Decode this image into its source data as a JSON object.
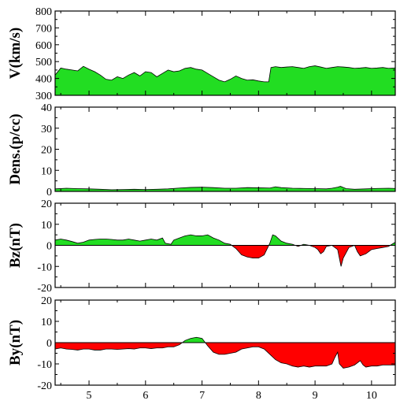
{
  "chart_data": [
    {
      "type": "area",
      "ylabel": "V(km/s)",
      "ylim": [
        300,
        800
      ],
      "yticks": [
        "300",
        "400",
        "500",
        "600",
        "700",
        "800"
      ],
      "baseline": 300,
      "grid": false,
      "colors": {
        "positive": "#22dd22",
        "negative": "#ff0000"
      },
      "x": [
        4.4,
        4.5,
        4.6,
        4.7,
        4.8,
        4.9,
        5.0,
        5.1,
        5.2,
        5.3,
        5.4,
        5.5,
        5.6,
        5.7,
        5.8,
        5.9,
        6.0,
        6.1,
        6.2,
        6.3,
        6.4,
        6.5,
        6.6,
        6.7,
        6.8,
        6.9,
        7.0,
        7.1,
        7.2,
        7.3,
        7.4,
        7.5,
        7.6,
        7.7,
        7.8,
        7.9,
        8.0,
        8.1,
        8.18,
        8.22,
        8.3,
        8.4,
        8.5,
        8.6,
        8.7,
        8.8,
        8.9,
        9.0,
        9.1,
        9.2,
        9.3,
        9.4,
        9.5,
        9.6,
        9.7,
        9.8,
        9.9,
        10.0,
        10.1,
        10.2,
        10.3,
        10.42
      ],
      "values": [
        420,
        462,
        455,
        450,
        445,
        472,
        455,
        440,
        420,
        395,
        390,
        410,
        400,
        420,
        435,
        415,
        440,
        435,
        410,
        430,
        450,
        440,
        445,
        460,
        465,
        455,
        450,
        430,
        410,
        390,
        380,
        395,
        415,
        400,
        390,
        392,
        385,
        380,
        380,
        465,
        470,
        465,
        468,
        470,
        465,
        460,
        470,
        475,
        468,
        460,
        465,
        470,
        468,
        465,
        460,
        462,
        465,
        460,
        462,
        465,
        460,
        462
      ]
    },
    {
      "type": "area",
      "ylabel": "Dens.(p/cc)",
      "ylim": [
        0,
        40
      ],
      "yticks": [
        "0",
        "10",
        "20",
        "30",
        "40"
      ],
      "baseline": 0,
      "grid": false,
      "colors": {
        "positive": "#22dd22",
        "negative": "#ff0000"
      },
      "x": [
        4.4,
        4.6,
        4.8,
        5.0,
        5.2,
        5.4,
        5.6,
        5.8,
        6.0,
        6.2,
        6.4,
        6.6,
        6.8,
        7.0,
        7.2,
        7.4,
        7.6,
        7.8,
        8.0,
        8.2,
        8.3,
        8.4,
        8.6,
        8.8,
        9.0,
        9.2,
        9.3,
        9.4,
        9.45,
        9.55,
        9.7,
        9.9,
        10.1,
        10.3,
        10.42
      ],
      "values": [
        1.2,
        1.5,
        1.3,
        1.2,
        1.0,
        0.8,
        0.9,
        1.0,
        0.9,
        1.0,
        1.2,
        1.6,
        1.9,
        2.0,
        1.8,
        1.5,
        1.5,
        1.8,
        1.7,
        1.6,
        2.2,
        1.8,
        1.5,
        1.4,
        1.3,
        1.2,
        1.5,
        2.0,
        2.4,
        1.3,
        1.0,
        1.2,
        1.4,
        1.5,
        1.4
      ]
    },
    {
      "type": "area",
      "ylabel": "Bz(nT)",
      "ylim": [
        -20,
        20
      ],
      "yticks": [
        "-20",
        "-10",
        "0",
        "10",
        "20"
      ],
      "baseline": 0,
      "grid": false,
      "colors": {
        "positive": "#22dd22",
        "negative": "#ff0000"
      },
      "x": [
        4.4,
        4.5,
        4.6,
        4.7,
        4.8,
        4.9,
        5.0,
        5.1,
        5.2,
        5.3,
        5.4,
        5.5,
        5.6,
        5.7,
        5.8,
        5.9,
        6.0,
        6.1,
        6.2,
        6.3,
        6.35,
        6.45,
        6.5,
        6.6,
        6.7,
        6.8,
        6.9,
        7.0,
        7.1,
        7.2,
        7.3,
        7.4,
        7.5,
        7.6,
        7.7,
        7.8,
        7.9,
        8.0,
        8.1,
        8.2,
        8.25,
        8.3,
        8.4,
        8.5,
        8.6,
        8.7,
        8.8,
        8.9,
        9.0,
        9.05,
        9.1,
        9.15,
        9.2,
        9.3,
        9.35,
        9.4,
        9.43,
        9.46,
        9.5,
        9.6,
        9.7,
        9.75,
        9.8,
        9.9,
        10.0,
        10.1,
        10.2,
        10.3,
        10.42
      ],
      "values": [
        2.5,
        3.0,
        2.5,
        1.8,
        1.0,
        1.5,
        2.5,
        2.8,
        3.0,
        3.0,
        2.8,
        2.5,
        2.5,
        3.0,
        2.5,
        2.0,
        2.5,
        3.0,
        2.5,
        3.5,
        1.0,
        0.5,
        2.5,
        3.5,
        4.5,
        5.0,
        4.5,
        4.5,
        5.0,
        3.5,
        2.5,
        1.0,
        0.5,
        -1.5,
        -4.5,
        -5.5,
        -6.0,
        -6.0,
        -4.5,
        1.0,
        5.0,
        4.5,
        2.0,
        1.0,
        0.5,
        -0.5,
        0.5,
        0.0,
        -1.0,
        -2.0,
        -4.0,
        -3.0,
        -0.5,
        0.0,
        -1.0,
        -2.0,
        -6.0,
        -10.0,
        -6.0,
        -1.0,
        0.0,
        -3.0,
        -5.0,
        -4.0,
        -2.0,
        -1.5,
        -1.0,
        -0.5,
        1.5
      ]
    },
    {
      "type": "area",
      "ylabel": "By(nT)",
      "ylim": [
        -20,
        20
      ],
      "yticks": [
        "-20",
        "-10",
        "0",
        "10",
        "20"
      ],
      "xticks": [
        "5",
        "6",
        "7",
        "8",
        "9",
        "10"
      ],
      "xlim": [
        4.4,
        10.42
      ],
      "baseline": 0,
      "grid": false,
      "colors": {
        "positive": "#22dd22",
        "negative": "#ff0000"
      },
      "x": [
        4.4,
        4.5,
        4.6,
        4.7,
        4.8,
        4.9,
        5.0,
        5.1,
        5.2,
        5.3,
        5.4,
        5.5,
        5.6,
        5.7,
        5.8,
        5.9,
        6.0,
        6.1,
        6.2,
        6.3,
        6.4,
        6.5,
        6.6,
        6.7,
        6.8,
        6.9,
        7.0,
        7.1,
        7.2,
        7.3,
        7.4,
        7.5,
        7.6,
        7.7,
        7.8,
        7.9,
        8.0,
        8.1,
        8.2,
        8.3,
        8.4,
        8.5,
        8.6,
        8.7,
        8.8,
        8.9,
        9.0,
        9.1,
        9.2,
        9.3,
        9.35,
        9.4,
        9.43,
        9.5,
        9.6,
        9.7,
        9.8,
        9.85,
        9.9,
        10.0,
        10.1,
        10.2,
        10.3,
        10.42
      ],
      "values": [
        -3.0,
        -2.5,
        -3.0,
        -3.2,
        -3.5,
        -3.0,
        -3.0,
        -3.5,
        -3.5,
        -3.0,
        -3.0,
        -3.2,
        -3.0,
        -2.8,
        -3.0,
        -2.5,
        -2.5,
        -2.8,
        -2.5,
        -2.5,
        -2.0,
        -2.0,
        -1.0,
        1.0,
        2.0,
        2.5,
        2.0,
        -1.5,
        -4.5,
        -5.5,
        -5.5,
        -5.0,
        -4.5,
        -3.0,
        -2.5,
        -2.0,
        -2.0,
        -3.0,
        -5.5,
        -8.0,
        -9.5,
        -10.0,
        -11.0,
        -11.5,
        -11.0,
        -11.5,
        -11.0,
        -11.0,
        -11.0,
        -10.0,
        -7.0,
        -4.5,
        -10.0,
        -12.0,
        -11.5,
        -10.5,
        -8.5,
        -10.5,
        -11.5,
        -11.0,
        -11.0,
        -10.5,
        -10.5,
        -10.5
      ]
    }
  ]
}
